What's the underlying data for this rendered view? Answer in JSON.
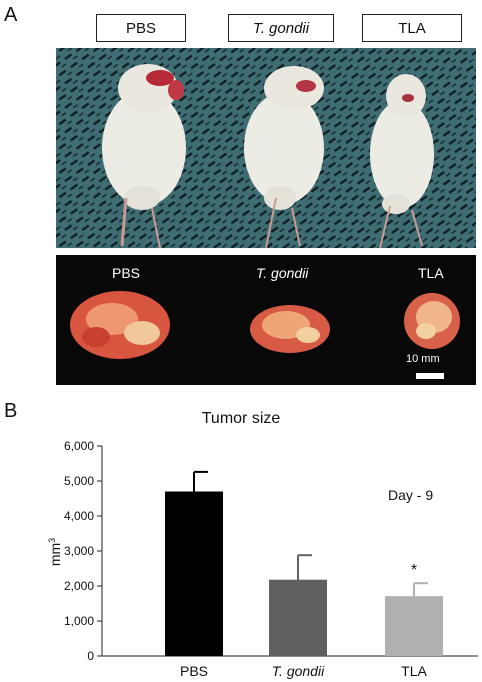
{
  "panels": {
    "a": "A",
    "b": "B"
  },
  "groups": [
    "PBS",
    "T. gondii",
    "TLA"
  ],
  "scale_label": "10 mm",
  "chart_data": {
    "type": "bar",
    "title": "Tumor size",
    "ylabel": "mm",
    "ylabel_superscript": "3",
    "categories": [
      "PBS",
      "T. gondii",
      "TLA"
    ],
    "values": [
      4700,
      2180,
      1710
    ],
    "errors": [
      560,
      700,
      370
    ],
    "colors": [
      "#000000",
      "#606060",
      "#b0b0b0"
    ],
    "ylim": [
      0,
      6000
    ],
    "yticks": [
      "0",
      "1,000",
      "2,000",
      "3,000",
      "4,000",
      "5,000",
      "6,000"
    ],
    "annotation": "Day - 9",
    "significance": [
      "",
      "",
      "*"
    ]
  }
}
